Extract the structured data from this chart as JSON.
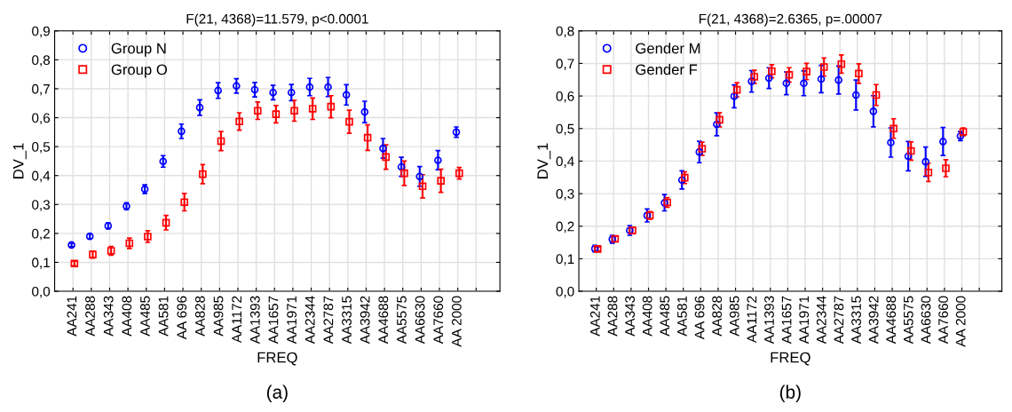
{
  "chart_data": [
    {
      "type": "scatter",
      "title": "F(21, 4368)=11.579, p<0.0001",
      "xlabel": "FREQ",
      "ylabel": "DV_1",
      "categories": [
        "AA241",
        "AA288",
        "AA343",
        "AA408",
        "AA485",
        "AA581",
        "AA 696",
        "AA828",
        "AA985",
        "AA1172",
        "AA1393",
        "AA1657",
        "AA1971",
        "AA2344",
        "AA2787",
        "AA3315",
        "AA3942",
        "AA4688",
        "AA5575",
        "AA6630",
        "AA7660",
        "AA 2000",
        null
      ],
      "series": [
        {
          "name": "Group N",
          "color": "#0000ff",
          "marker": "circle",
          "values": [
            0.16,
            0.19,
            0.226,
            0.294,
            0.353,
            0.449,
            0.553,
            0.635,
            0.694,
            0.71,
            0.697,
            0.687,
            0.687,
            0.706,
            0.706,
            0.679,
            0.62,
            0.494,
            0.43,
            0.397,
            0.453,
            0.55,
            null
          ],
          "errors": [
            0.006,
            0.008,
            0.01,
            0.012,
            0.015,
            0.02,
            0.025,
            0.027,
            0.027,
            0.025,
            0.025,
            0.025,
            0.028,
            0.03,
            0.033,
            0.035,
            0.037,
            0.034,
            0.033,
            0.034,
            0.033,
            0.018,
            null
          ]
        },
        {
          "name": "Group O",
          "color": "#ff0000",
          "marker": "square",
          "values": [
            0.096,
            0.127,
            0.14,
            0.166,
            0.189,
            0.237,
            0.308,
            0.405,
            0.519,
            0.587,
            0.624,
            0.612,
            0.624,
            0.631,
            0.638,
            0.586,
            0.531,
            0.464,
            0.408,
            0.363,
            0.382,
            0.408,
            null
          ],
          "errors": [
            0.008,
            0.012,
            0.015,
            0.018,
            0.02,
            0.025,
            0.03,
            0.033,
            0.033,
            0.03,
            0.03,
            0.03,
            0.036,
            0.037,
            0.038,
            0.04,
            0.044,
            0.042,
            0.042,
            0.04,
            0.04,
            0.02,
            null
          ]
        }
      ],
      "ylim": [
        0,
        0.9
      ],
      "yticks": [
        {
          "value": 0,
          "label": "0,0"
        },
        {
          "value": 0.1,
          "label": "0,1"
        },
        {
          "value": 0.2,
          "label": "0,2"
        },
        {
          "value": 0.3,
          "label": "0,3"
        },
        {
          "value": 0.4,
          "label": "0,4"
        },
        {
          "value": 0.5,
          "label": "0,5"
        },
        {
          "value": 0.6,
          "label": "0,6"
        },
        {
          "value": 0.7,
          "label": "0,7"
        },
        {
          "value": 0.8,
          "label": "0,8"
        },
        {
          "value": 0.9,
          "label": "0,9"
        }
      ],
      "grid": true,
      "legend": "top left",
      "annotations": [
        "(a)"
      ]
    },
    {
      "type": "scatter",
      "title": "F(21, 4368)=2.6365, p=.00007",
      "xlabel": "FREQ",
      "ylabel": "DV_1",
      "categories": [
        "AA241",
        "AA288",
        "AA343",
        "AA408",
        "AA485",
        "AA581",
        "AA 696",
        "AA828",
        "AA985",
        "AA1172",
        "AA1393",
        "AA1657",
        "AA1971",
        "AA2344",
        "AA2787",
        "AA3315",
        "AA3942",
        "AA4688",
        "AA5575",
        "AA6630",
        "AA7660",
        "AA 2000",
        null
      ],
      "series": [
        {
          "name": "Gender M",
          "color": "#0000ff",
          "marker": "circle",
          "values": [
            0.131,
            0.16,
            0.187,
            0.233,
            0.272,
            0.342,
            0.428,
            0.513,
            0.599,
            0.645,
            0.655,
            0.639,
            0.639,
            0.652,
            0.649,
            0.603,
            0.553,
            0.457,
            0.415,
            0.398,
            0.46,
            0.477,
            null
          ],
          "errors": [
            0.01,
            0.012,
            0.015,
            0.02,
            0.025,
            0.028,
            0.033,
            0.035,
            0.035,
            0.033,
            0.032,
            0.035,
            0.038,
            0.042,
            0.043,
            0.046,
            0.048,
            0.045,
            0.045,
            0.045,
            0.043,
            0.014,
            null
          ]
        },
        {
          "name": "Gender F",
          "color": "#ff0000",
          "marker": "square",
          "values": [
            0.13,
            0.161,
            0.187,
            0.233,
            0.273,
            0.349,
            0.438,
            0.527,
            0.619,
            0.659,
            0.676,
            0.665,
            0.675,
            0.689,
            0.698,
            0.669,
            0.603,
            0.5,
            0.431,
            0.365,
            0.378,
            0.49,
            null
          ],
          "errors": [
            0.006,
            0.008,
            0.01,
            0.012,
            0.015,
            0.018,
            0.02,
            0.022,
            0.022,
            0.02,
            0.02,
            0.022,
            0.025,
            0.028,
            0.028,
            0.03,
            0.032,
            0.03,
            0.028,
            0.028,
            0.026,
            0.012,
            null
          ]
        }
      ],
      "ylim": [
        0,
        0.8
      ],
      "yticks": [
        {
          "value": 0,
          "label": "0,0"
        },
        {
          "value": 0.1,
          "label": "0,1"
        },
        {
          "value": 0.2,
          "label": "0,2"
        },
        {
          "value": 0.3,
          "label": "0,3"
        },
        {
          "value": 0.4,
          "label": "0,4"
        },
        {
          "value": 0.5,
          "label": "0,5"
        },
        {
          "value": 0.6,
          "label": "0,6"
        },
        {
          "value": 0.7,
          "label": "0,7"
        },
        {
          "value": 0.8,
          "label": "0,8"
        }
      ],
      "grid": true,
      "legend": "top left",
      "annotations": [
        "(b)"
      ]
    }
  ]
}
